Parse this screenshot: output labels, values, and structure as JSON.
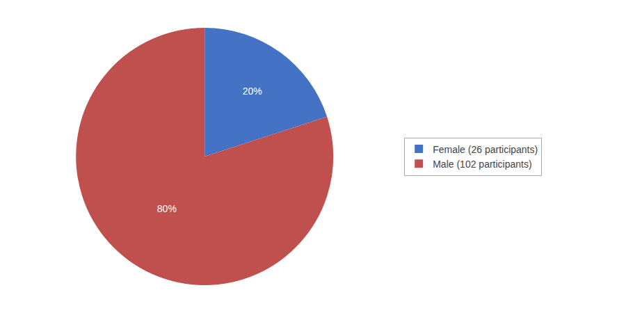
{
  "chart_data": {
    "type": "pie",
    "categories": [
      "Female (26 participants)",
      "Male (102 participants)"
    ],
    "values": [
      20,
      80
    ],
    "value_labels": [
      "20%",
      "80%"
    ],
    "colors": [
      "#4472C4",
      "#C0504D"
    ],
    "data_labels": true,
    "legend": "right"
  }
}
